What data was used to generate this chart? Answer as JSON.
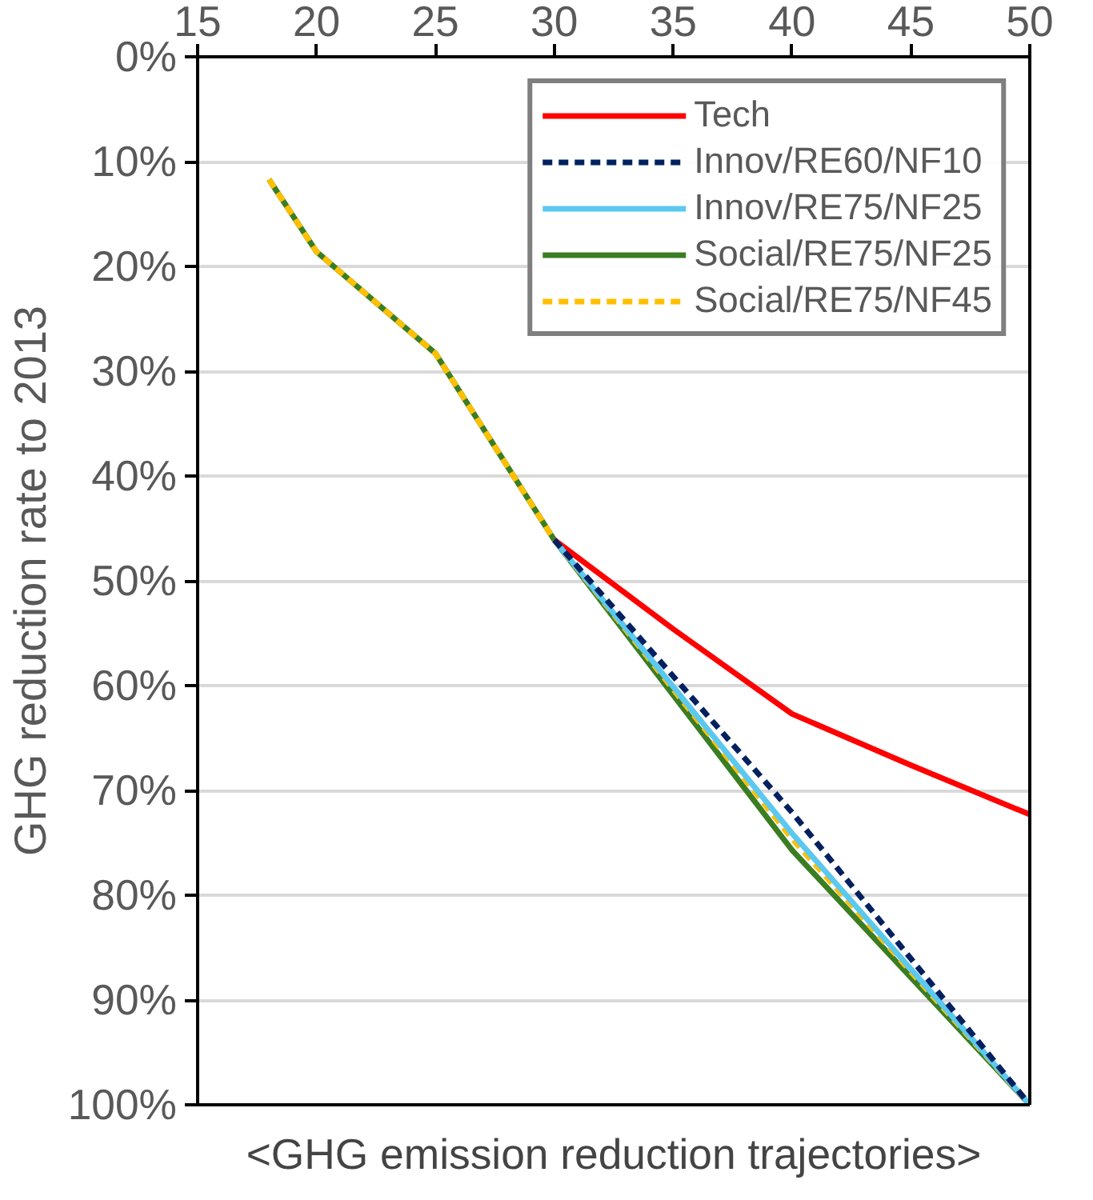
{
  "chart_data": {
    "type": "line",
    "xlabel": "<GHG emission reduction trajectories>",
    "ylabel": "GHG reduction rate to 2013",
    "x": [
      18,
      20,
      25,
      30,
      40,
      50
    ],
    "xlim": [
      15,
      50
    ],
    "xticks": [
      15,
      20,
      25,
      30,
      35,
      40,
      45,
      50
    ],
    "ylim": [
      100,
      0
    ],
    "yticks": [
      {
        "value": 0,
        "label": "0%"
      },
      {
        "value": 10,
        "label": "10%"
      },
      {
        "value": 20,
        "label": "20%"
      },
      {
        "value": 30,
        "label": "30%"
      },
      {
        "value": 40,
        "label": "40%"
      },
      {
        "value": 50,
        "label": "50%"
      },
      {
        "value": 60,
        "label": "60%"
      },
      {
        "value": 70,
        "label": "70%"
      },
      {
        "value": 80,
        "label": "80%"
      },
      {
        "value": 90,
        "label": "90%"
      },
      {
        "value": 100,
        "label": "100%"
      }
    ],
    "grid": "y",
    "legend": "top right",
    "series": [
      {
        "name": "Tech",
        "color": "#ff0000",
        "line_style": "solid",
        "x": [
          30,
          35,
          40,
          45,
          50
        ],
        "values": [
          46.1,
          54.6,
          62.7,
          67.6,
          72.3
        ]
      },
      {
        "name": "Innov/RE60/NF10",
        "color": "#002060",
        "line_style": "dashed",
        "x": [
          30,
          40,
          50
        ],
        "values": [
          46.1,
          72.1,
          100
        ]
      },
      {
        "name": "Innov/RE75/NF25",
        "color": "#5bc8f0",
        "line_style": "solid",
        "x": [
          30,
          40,
          50
        ],
        "values": [
          46.1,
          74.1,
          100
        ]
      },
      {
        "name": "Social/RE75/NF25",
        "color": "#3a7d23",
        "line_style": "solid",
        "values": [
          11.7,
          18.6,
          28.3,
          46.1,
          75.7,
          100
        ]
      },
      {
        "name": "Social/RE75/NF45",
        "color": "#ffc000",
        "line_style": "dashed",
        "values": [
          11.7,
          18.6,
          28.3,
          46.1,
          74.6,
          100
        ]
      }
    ]
  }
}
